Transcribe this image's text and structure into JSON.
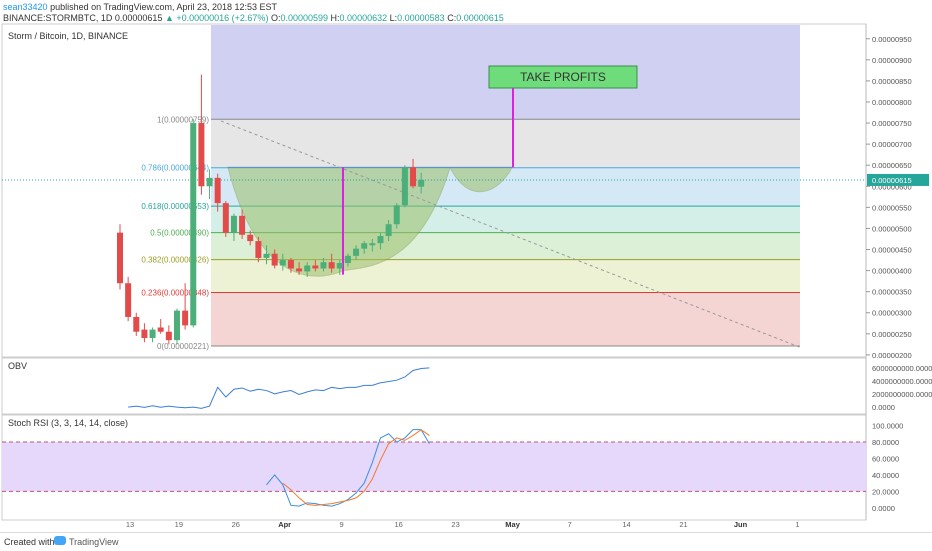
{
  "header": {
    "author": "sean33420",
    "published": "published on TradingView.com, April 23, 2018 12:53 EST",
    "symbol": "BINANCE:STORMBTC, 1D",
    "open_label": "O:",
    "open": "0.00000599",
    "high_label": "H:",
    "high": "0.00000632",
    "low_label": "L:",
    "low": "0.00000583",
    "close_label": "C:",
    "close": "0.00000615",
    "price": "0.00000615",
    "change": "▲ +0.00000016 (+2.67%)"
  },
  "footer": {
    "created": "Created with",
    "brand": "TradingView"
  },
  "chart_data": [
    {
      "type": "candlestick",
      "title": "Storm / Bitcoin, 1D, BINANCE",
      "ylim": [
        1.95e-06,
        9.85e-06
      ],
      "y_ticks": [
        "0.00000950",
        "0.00000900",
        "0.00000850",
        "0.00000800",
        "0.00000750",
        "0.00000700",
        "0.00000650",
        "0.00000600",
        "0.00000550",
        "0.00000500",
        "0.00000450",
        "0.00000400",
        "0.00000350",
        "0.00000300",
        "0.00000250",
        "0.00000200"
      ],
      "x_ticks": [
        "13",
        "19",
        "26",
        "Apr",
        "9",
        "16",
        "23",
        "May",
        "7",
        "14",
        "21",
        "Jun",
        "1"
      ],
      "last_price": "0.00000615",
      "fib_levels": [
        {
          "ratio": "1",
          "label": "1(0.00000759)",
          "value": 7.59e-06,
          "color": "#888888",
          "fill": "#e6e6e6"
        },
        {
          "ratio": "0.786",
          "label": "0.786(0.00000644)",
          "value": 6.44e-06,
          "color": "#4aa8d8",
          "fill": "#d4e9f5"
        },
        {
          "ratio": "0.618",
          "label": "0.618(0.00000553)",
          "value": 5.53e-06,
          "color": "#26a69a",
          "fill": "#d4efe8"
        },
        {
          "ratio": "0.5",
          "label": "0.5(0.00000490)",
          "value": 4.9e-06,
          "color": "#4caf50",
          "fill": "#dcf0d8"
        },
        {
          "ratio": "0.382",
          "label": "0.382(0.00000426)",
          "value": 4.26e-06,
          "color": "#9e9d24",
          "fill": "#eef2d4"
        },
        {
          "ratio": "0.236",
          "label": "0.236(0.00000348)",
          "value": 3.48e-06,
          "color": "#e53935",
          "fill": "#f5d4d4"
        },
        {
          "ratio": "0",
          "label": "0(0.00000221)",
          "value": 2.21e-06,
          "color": "#888888",
          "fill": null
        }
      ],
      "annotation": {
        "text": "TAKE PROFITS",
        "color": "#6fdc7c"
      },
      "candles": [
        {
          "o": 4.9e-06,
          "h": 5.1e-06,
          "l": 3.55e-06,
          "c": 3.7e-06
        },
        {
          "o": 3.7e-06,
          "h": 3.85e-06,
          "l": 2.8e-06,
          "c": 2.9e-06
        },
        {
          "o": 2.9e-06,
          "h": 3e-06,
          "l": 2.45e-06,
          "c": 2.55e-06
        },
        {
          "o": 2.6e-06,
          "h": 2.75e-06,
          "l": 2.3e-06,
          "c": 2.4e-06
        },
        {
          "o": 2.4e-06,
          "h": 2.65e-06,
          "l": 2.3e-06,
          "c": 2.6e-06
        },
        {
          "o": 2.65e-06,
          "h": 2.85e-06,
          "l": 2.5e-06,
          "c": 2.55e-06
        },
        {
          "o": 2.55e-06,
          "h": 2.7e-06,
          "l": 2.25e-06,
          "c": 2.35e-06
        },
        {
          "o": 2.35e-06,
          "h": 3.1e-06,
          "l": 2.25e-06,
          "c": 3.05e-06
        },
        {
          "o": 3.05e-06,
          "h": 3.7e-06,
          "l": 2.6e-06,
          "c": 2.7e-06
        },
        {
          "o": 2.7e-06,
          "h": 7.6e-06,
          "l": 2.65e-06,
          "c": 7.5e-06
        },
        {
          "o": 7.5e-06,
          "h": 8.65e-06,
          "l": 5.8e-06,
          "c": 6e-06
        },
        {
          "o": 6e-06,
          "h": 6.4e-06,
          "l": 5.7e-06,
          "c": 6.2e-06
        },
        {
          "o": 6.2e-06,
          "h": 6.3e-06,
          "l": 5.4e-06,
          "c": 5.6e-06
        },
        {
          "o": 5.6e-06,
          "h": 5.65e-06,
          "l": 4.8e-06,
          "c": 4.9e-06
        },
        {
          "o": 4.9e-06,
          "h": 5.35e-06,
          "l": 4.7e-06,
          "c": 5.3e-06
        },
        {
          "o": 5.3e-06,
          "h": 5.45e-06,
          "l": 4.75e-06,
          "c": 4.85e-06
        },
        {
          "o": 4.85e-06,
          "h": 4.95e-06,
          "l": 4.6e-06,
          "c": 4.7e-06
        },
        {
          "o": 4.7e-06,
          "h": 4.8e-06,
          "l": 4.2e-06,
          "c": 4.3e-06
        },
        {
          "o": 4.3e-06,
          "h": 4.6e-06,
          "l": 4.15e-06,
          "c": 4.4e-06
        },
        {
          "o": 4.4e-06,
          "h": 4.5e-06,
          "l": 4.05e-06,
          "c": 4.12e-06
        },
        {
          "o": 4.12e-06,
          "h": 4.4e-06,
          "l": 4e-06,
          "c": 4.25e-06
        },
        {
          "o": 4.25e-06,
          "h": 4.3e-06,
          "l": 3.95e-06,
          "c": 4.05e-06
        },
        {
          "o": 4.05e-06,
          "h": 4.2e-06,
          "l": 3.9e-06,
          "c": 3.98e-06
        },
        {
          "o": 3.98e-06,
          "h": 4.2e-06,
          "l": 3.85e-06,
          "c": 4.12e-06
        },
        {
          "o": 4.12e-06,
          "h": 4.25e-06,
          "l": 3.98e-06,
          "c": 4.05e-06
        },
        {
          "o": 4.05e-06,
          "h": 4.3e-06,
          "l": 3.98e-06,
          "c": 4.2e-06
        },
        {
          "o": 4.2e-06,
          "h": 4.4e-06,
          "l": 3.95e-06,
          "c": 4.05e-06
        },
        {
          "o": 4.05e-06,
          "h": 4.25e-06,
          "l": 3.9e-06,
          "c": 4.18e-06
        },
        {
          "o": 4.18e-06,
          "h": 4.4e-06,
          "l": 4.1e-06,
          "c": 4.35e-06
        },
        {
          "o": 4.35e-06,
          "h": 4.6e-06,
          "l": 4.25e-06,
          "c": 4.52e-06
        },
        {
          "o": 4.52e-06,
          "h": 4.7e-06,
          "l": 4.4e-06,
          "c": 4.65e-06
        },
        {
          "o": 4.6e-06,
          "h": 4.75e-06,
          "l": 4.45e-06,
          "c": 4.65e-06
        },
        {
          "o": 4.65e-06,
          "h": 4.9e-06,
          "l": 4.5e-06,
          "c": 4.82e-06
        },
        {
          "o": 4.82e-06,
          "h": 5.2e-06,
          "l": 4.7e-06,
          "c": 5.1e-06
        },
        {
          "o": 5.1e-06,
          "h": 5.6e-06,
          "l": 5e-06,
          "c": 5.55e-06
        },
        {
          "o": 5.55e-06,
          "h": 6.5e-06,
          "l": 5.5e-06,
          "c": 6.45e-06
        },
        {
          "o": 6.45e-06,
          "h": 6.65e-06,
          "l": 5.95e-06,
          "c": 6e-06
        },
        {
          "o": 5.99e-06,
          "h": 6.32e-06,
          "l": 5.83e-06,
          "c": 6.15e-06
        }
      ]
    },
    {
      "type": "line",
      "title": "OBV",
      "y_ticks": [
        "6000000000.0000",
        "4000000000.0000",
        "2000000000.0000",
        "0.0000"
      ],
      "ylim": [
        -500000000,
        6600000000
      ],
      "series": [
        {
          "values": [
            -50000000,
            100000000,
            -100000000,
            150000000,
            -80000000,
            100000000,
            -50000000,
            -150000000,
            -50000000,
            -250000000,
            100000000,
            3000000000,
            1500000000,
            2700000000,
            2900000000,
            2400000000,
            2700000000,
            2500000000,
            2000000000,
            2300000000,
            2500000000,
            1900000000,
            2300000000,
            2600000000,
            2500000000,
            3000000000,
            2800000000,
            3000000000,
            3000000000,
            3300000000,
            3300000000,
            3700000000,
            3900000000,
            4100000000,
            4600000000,
            5600000000,
            5900000000,
            6000000000
          ]
        }
      ]
    },
    {
      "type": "line",
      "title": "Stoch RSI (3, 3, 14, 14, close)",
      "ylim": [
        -10,
        108
      ],
      "y_ticks": [
        "100.0000",
        "80.0000",
        "60.0000",
        "40.0000",
        "20.0000",
        "0.0000"
      ],
      "bands": [
        80,
        20
      ],
      "series": [
        {
          "name": "K",
          "values": [
            null,
            null,
            null,
            null,
            null,
            null,
            null,
            null,
            null,
            null,
            null,
            null,
            null,
            null,
            null,
            null,
            null,
            28,
            40,
            28,
            3,
            2,
            6,
            5,
            3,
            2,
            5,
            10,
            18,
            30,
            55,
            85,
            90,
            80,
            85,
            95,
            95,
            78
          ]
        },
        {
          "name": "D",
          "values": [
            null,
            null,
            null,
            null,
            null,
            null,
            null,
            null,
            null,
            null,
            null,
            null,
            null,
            null,
            null,
            null,
            null,
            null,
            null,
            30,
            22,
            12,
            4,
            3,
            4,
            5,
            7,
            9,
            12,
            20,
            35,
            58,
            78,
            85,
            82,
            88,
            95,
            88
          ]
        }
      ]
    }
  ]
}
